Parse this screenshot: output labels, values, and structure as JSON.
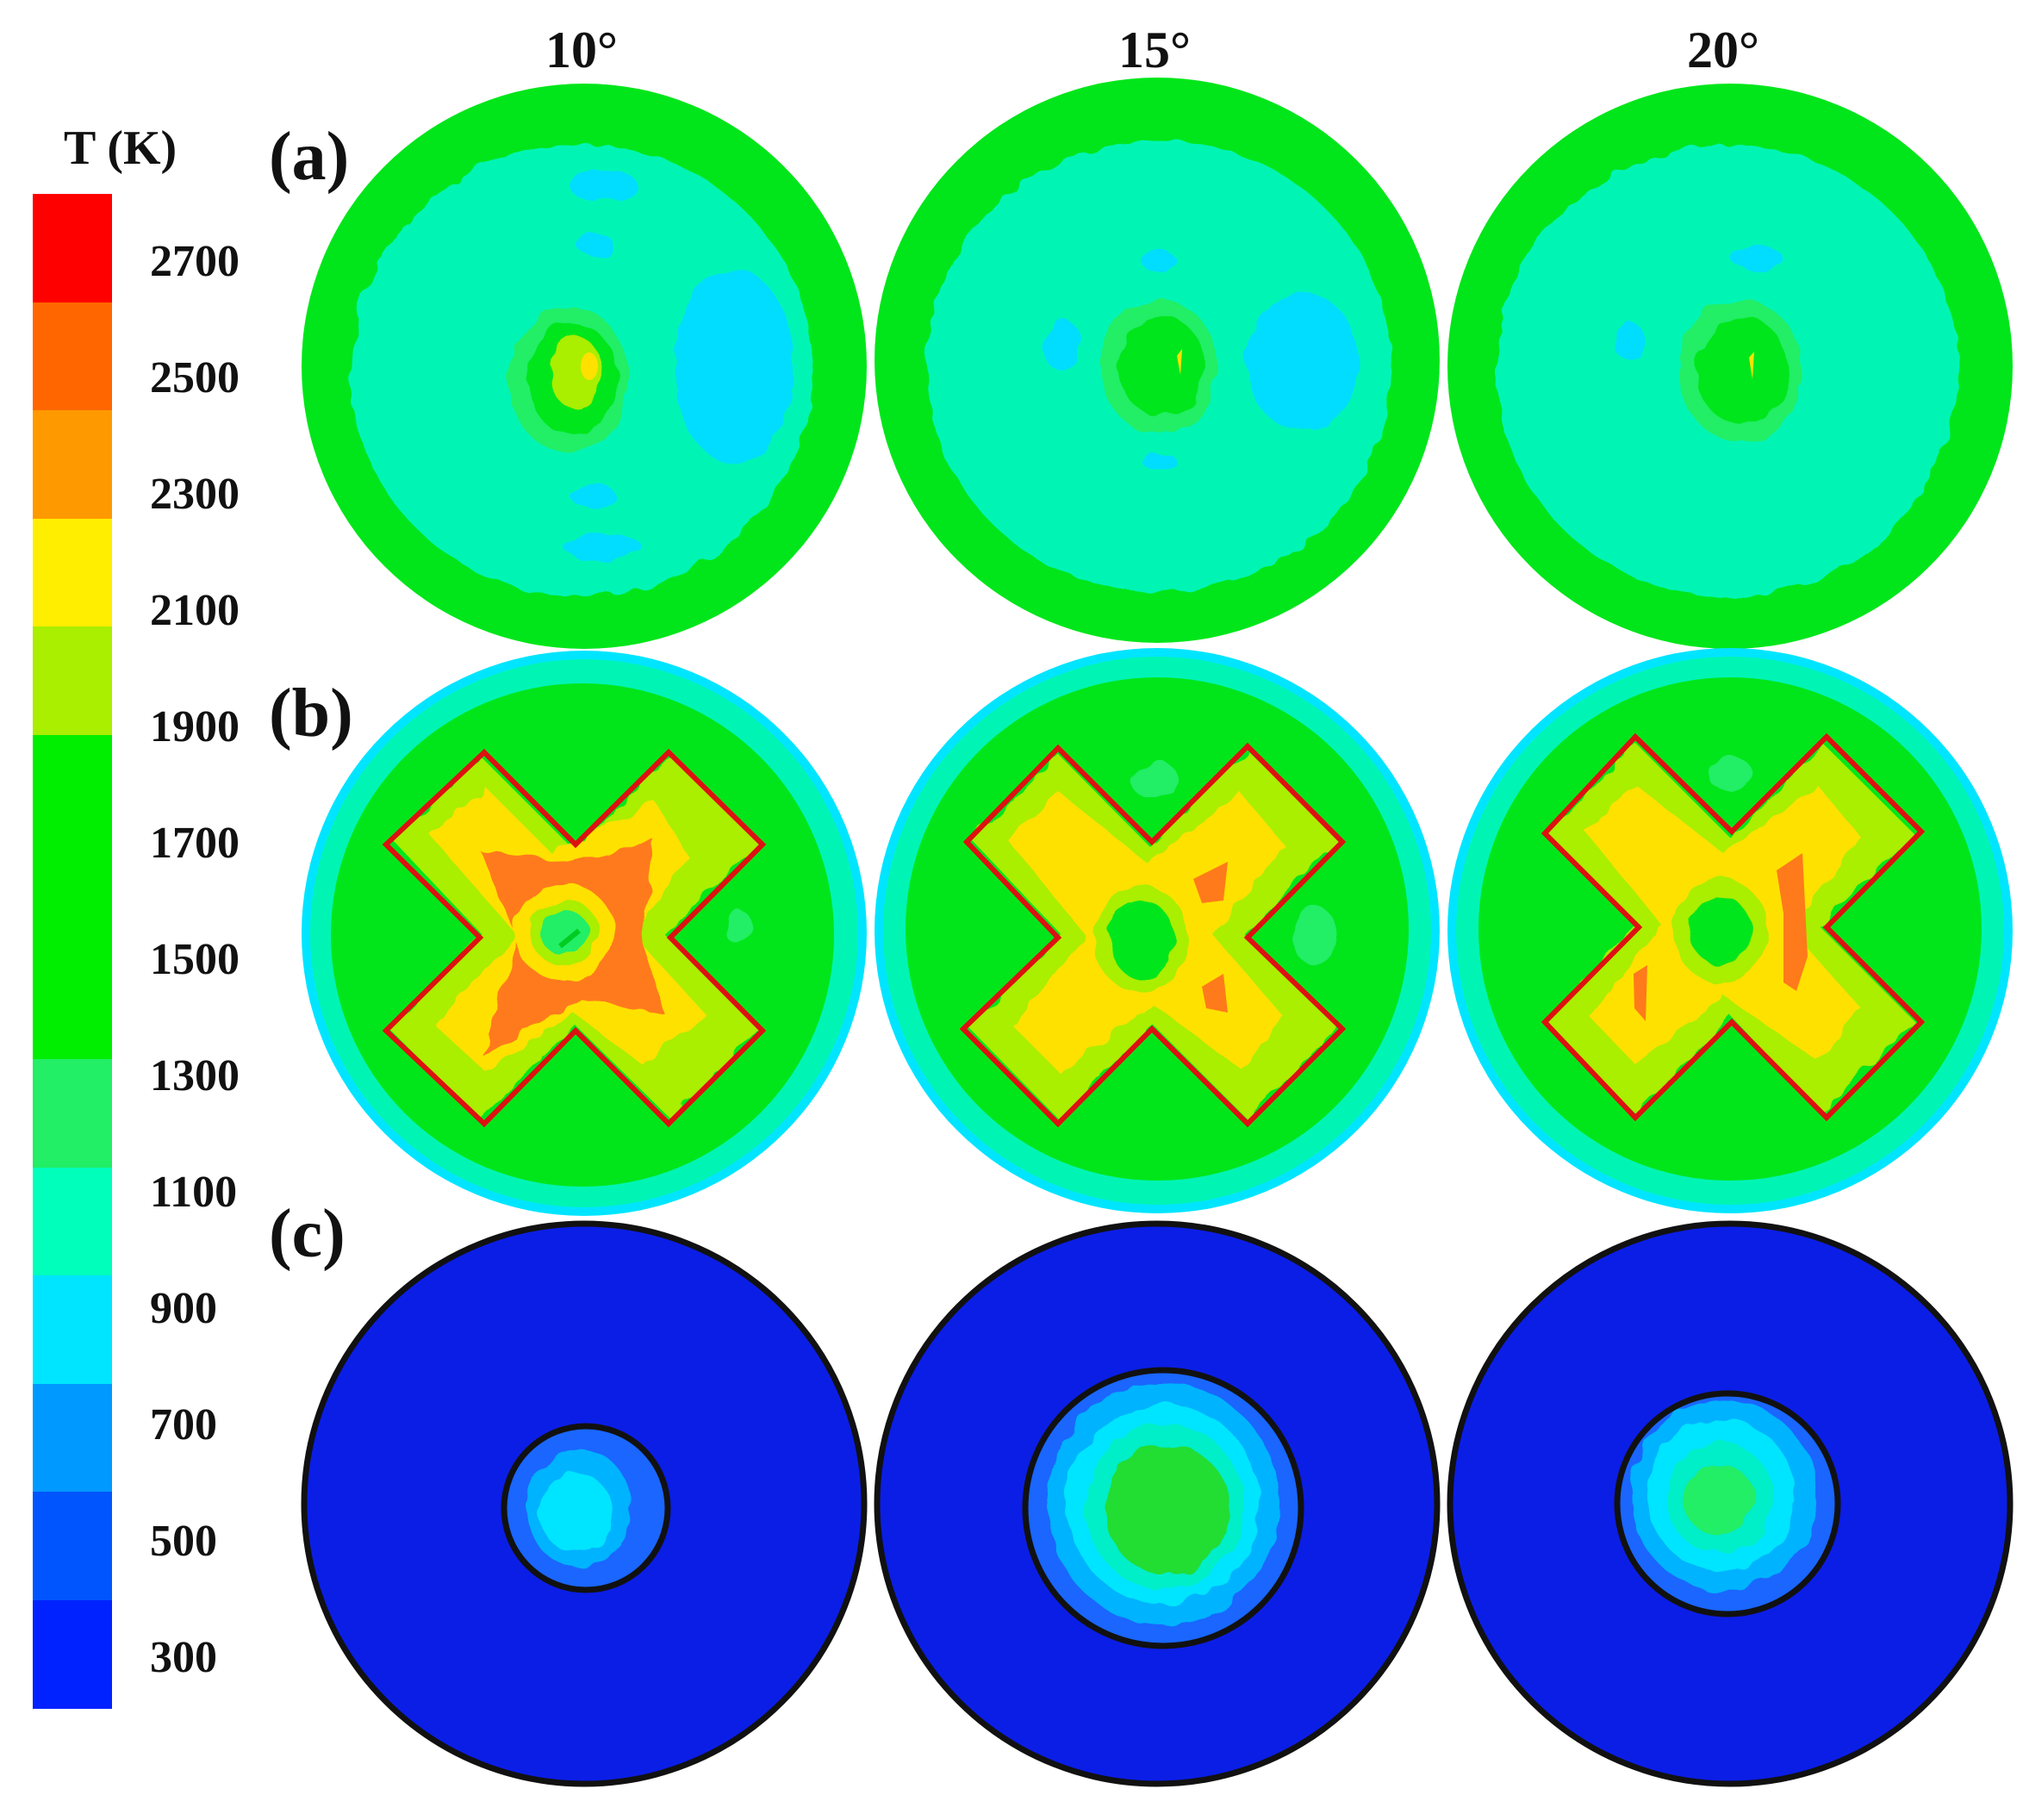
{
  "colorbar": {
    "title": "T (K)",
    "ticks": [
      "2700",
      "2500",
      "2300",
      "2100",
      "1900",
      "1700",
      "1500",
      "1300",
      "1100",
      "900",
      "700",
      "500",
      "300"
    ],
    "bands_top_to_bottom": [
      "#ff0000",
      "#ff6600",
      "#ff9900",
      "#ffee00",
      "#aaee00",
      "#00ee00",
      "#00ee00",
      "#00ee00",
      "#22ee66",
      "#00ffbb",
      "#00e5ff",
      "#0099ff",
      "#0055ff",
      "#0022ff"
    ]
  },
  "columns": [
    "10°",
    "15°",
    "20°"
  ],
  "rows": [
    "(a)",
    "(b)",
    "(c)"
  ],
  "colors": {
    "outer_green": "#00e61a",
    "cyan_region": "#00f5b5",
    "light_blue": "#00ddff",
    "yellow_green": "#aaee00",
    "yellow": "#ffe100",
    "orange": "#ff7a1a",
    "x_outline": "#dd1111",
    "deep_blue": "#0b1ee6",
    "mid_blue": "#1a66ff",
    "sky_blue": "#00b3ff",
    "teal": "#00eec8",
    "green_core": "#22dd33"
  }
}
